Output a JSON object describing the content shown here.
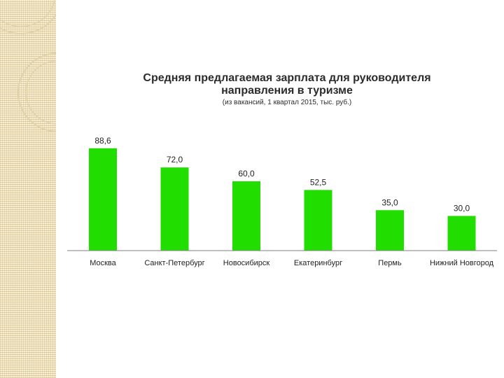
{
  "page": {
    "background": "#ffffff",
    "side_strip_color": "#f6efd6"
  },
  "chart_data": {
    "type": "bar",
    "title": "Средняя предлагаемая зарплата для руководителя направления в туризме",
    "title_lines": [
      "Средняя предлагаемая зарплата для руководителя",
      "направления в туризме"
    ],
    "subtitle": "(из вакансий, 1 квартал 2015, тыс. руб.)",
    "categories": [
      "Москва",
      "Санкт-Петербург",
      "Новосибирск",
      "Екатеринбург",
      "Пермь",
      "Нижний Новгород"
    ],
    "values": [
      88.6,
      72.0,
      60.0,
      52.5,
      35.0,
      30.0
    ],
    "value_labels": [
      "88,6",
      "72,0",
      "60,0",
      "52,5",
      "35,0",
      "30,0"
    ],
    "ylim": [
      0,
      100
    ],
    "bar_color": "#22dd00",
    "axis_color": "#7f7f7f",
    "grid": false,
    "legend": "none",
    "xlabel": "",
    "ylabel": ""
  }
}
